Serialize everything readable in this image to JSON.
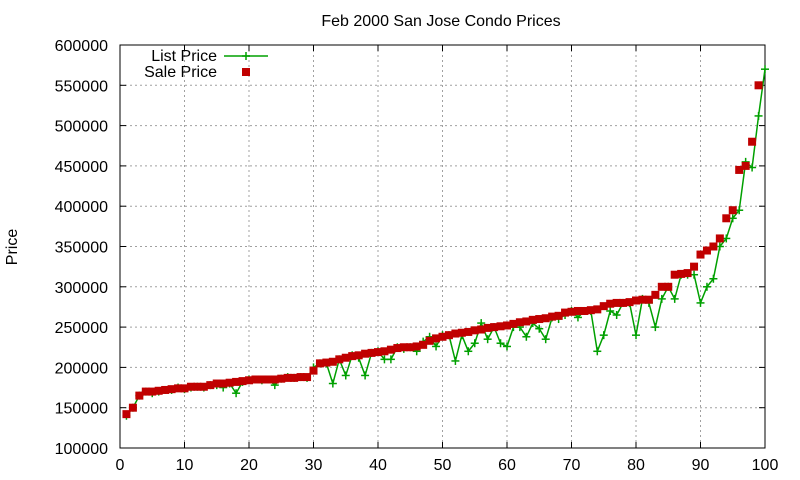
{
  "chart_data": {
    "type": "line",
    "title": "Feb 2000 San Jose Condo Prices",
    "xlabel": "",
    "ylabel": "Price",
    "xlim": [
      0,
      100
    ],
    "ylim": [
      100000,
      600000
    ],
    "x_ticks": [
      0,
      10,
      20,
      30,
      40,
      50,
      60,
      70,
      80,
      90,
      100
    ],
    "y_ticks": [
      100000,
      150000,
      200000,
      250000,
      300000,
      350000,
      400000,
      450000,
      500000,
      550000,
      600000
    ],
    "grid": true,
    "legend_position": "top-left",
    "series": [
      {
        "name": "List Price",
        "style": "line-with-plus",
        "color": "#00a000",
        "x": [
          1,
          2,
          3,
          4,
          5,
          6,
          7,
          8,
          9,
          10,
          11,
          12,
          13,
          14,
          15,
          16,
          17,
          18,
          19,
          20,
          21,
          22,
          23,
          24,
          25,
          26,
          27,
          28,
          29,
          30,
          31,
          32,
          33,
          34,
          35,
          36,
          37,
          38,
          39,
          40,
          41,
          42,
          43,
          44,
          45,
          46,
          47,
          48,
          49,
          50,
          51,
          52,
          53,
          54,
          55,
          56,
          57,
          58,
          59,
          60,
          61,
          62,
          63,
          64,
          65,
          66,
          67,
          68,
          69,
          70,
          71,
          72,
          73,
          74,
          75,
          76,
          77,
          78,
          79,
          80,
          81,
          82,
          83,
          84,
          85,
          86,
          87,
          88,
          89,
          90,
          91,
          92,
          93,
          94,
          95,
          96,
          97,
          98,
          99,
          100
        ],
        "y": [
          140000,
          150000,
          165000,
          170000,
          168000,
          170000,
          172000,
          172000,
          175000,
          173000,
          175000,
          176000,
          175000,
          178000,
          178000,
          175000,
          180000,
          168000,
          182000,
          185000,
          185000,
          184000,
          185000,
          178000,
          186000,
          188000,
          187000,
          188000,
          187000,
          200000,
          205000,
          205000,
          180000,
          210000,
          190000,
          215000,
          212000,
          190000,
          218000,
          220000,
          210000,
          210000,
          225000,
          223000,
          225000,
          220000,
          232000,
          238000,
          226000,
          240000,
          240000,
          208000,
          240000,
          220000,
          230000,
          255000,
          235000,
          250000,
          230000,
          226000,
          250000,
          250000,
          238000,
          255000,
          248000,
          235000,
          262000,
          260000,
          265000,
          270000,
          262000,
          270000,
          270000,
          220000,
          240000,
          270000,
          265000,
          280000,
          280000,
          240000,
          285000,
          280000,
          250000,
          285000,
          300000,
          285000,
          315000,
          315000,
          315000,
          280000,
          300000,
          310000,
          350000,
          360000,
          385000,
          395000,
          455000,
          448000,
          512000,
          570000
        ]
      },
      {
        "name": "Sale Price",
        "style": "square-markers",
        "color": "#c00000",
        "x": [
          1,
          2,
          3,
          4,
          5,
          6,
          7,
          8,
          9,
          10,
          11,
          12,
          13,
          14,
          15,
          16,
          17,
          18,
          19,
          20,
          21,
          22,
          23,
          24,
          25,
          26,
          27,
          28,
          29,
          30,
          31,
          32,
          33,
          34,
          35,
          36,
          37,
          38,
          39,
          40,
          41,
          42,
          43,
          44,
          45,
          46,
          47,
          48,
          49,
          50,
          51,
          52,
          53,
          54,
          55,
          56,
          57,
          58,
          59,
          60,
          61,
          62,
          63,
          64,
          65,
          66,
          67,
          68,
          69,
          70,
          71,
          72,
          73,
          74,
          75,
          76,
          77,
          78,
          79,
          80,
          81,
          82,
          83,
          84,
          85,
          86,
          87,
          88,
          89,
          90,
          91,
          92,
          93,
          94,
          95,
          96,
          97,
          98,
          99
        ],
        "y": [
          142000,
          150000,
          165000,
          170000,
          170000,
          171000,
          172000,
          173000,
          174000,
          174000,
          176000,
          176000,
          176000,
          178000,
          180000,
          180000,
          181000,
          182000,
          183000,
          184000,
          185000,
          185000,
          185000,
          185000,
          186000,
          187000,
          187000,
          188000,
          188000,
          196000,
          205000,
          206000,
          207000,
          210000,
          212000,
          214000,
          215000,
          217000,
          218000,
          219000,
          220000,
          222000,
          224000,
          225000,
          225000,
          226000,
          228000,
          233000,
          236000,
          238000,
          240000,
          242000,
          243000,
          244000,
          246000,
          247000,
          249000,
          250000,
          251000,
          252000,
          254000,
          256000,
          257000,
          259000,
          260000,
          261000,
          263000,
          264000,
          268000,
          269000,
          270000,
          270000,
          271000,
          272000,
          276000,
          279000,
          280000,
          280000,
          281000,
          283000,
          284000,
          284000,
          290000,
          300000,
          300000,
          315000,
          316000,
          317000,
          325000,
          340000,
          345000,
          350000,
          360000,
          385000,
          395000,
          445000,
          450000,
          480000,
          550000
        ]
      }
    ]
  }
}
